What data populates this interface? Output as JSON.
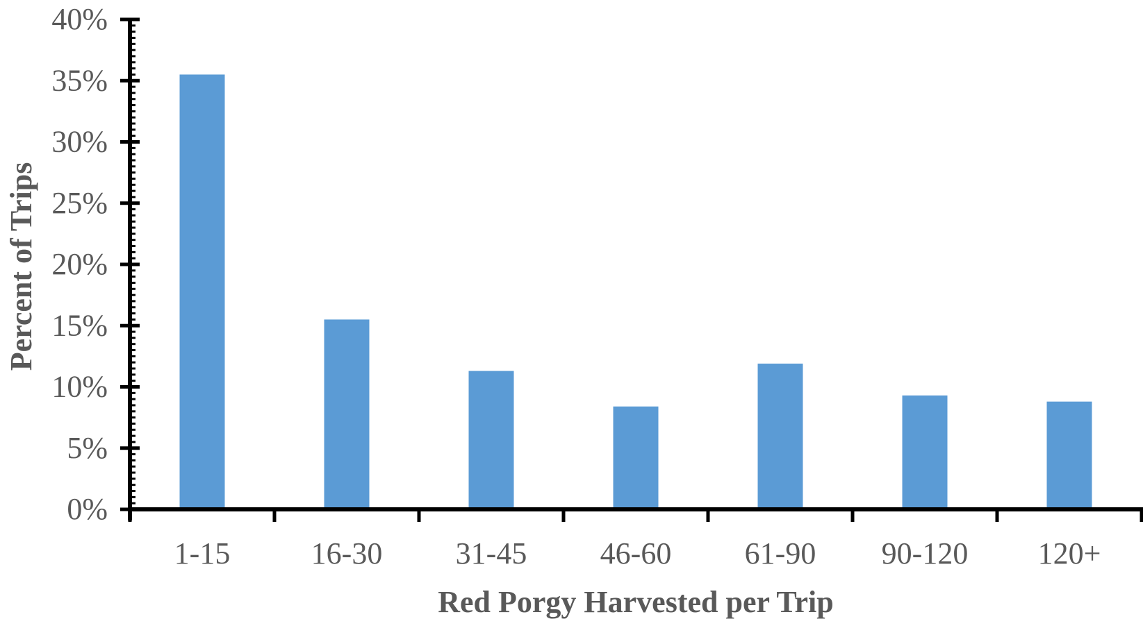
{
  "chart_data": {
    "type": "bar",
    "categories": [
      "1-15",
      "16-30",
      "31-45",
      "46-60",
      "61-90",
      "90-120",
      "120+"
    ],
    "values": [
      35.5,
      15.5,
      11.3,
      8.4,
      11.9,
      9.3,
      8.8
    ],
    "xlabel": "Red Porgy Harvested per Trip",
    "ylabel": "Percent of Trips",
    "ylim": [
      0,
      40
    ],
    "yticks": [
      "0%",
      "5%",
      "10%",
      "15%",
      "20%",
      "25%",
      "30%",
      "35%",
      "40%"
    ],
    "grid": false,
    "legend": "none",
    "colors": {
      "bar": "#5b9bd5",
      "axis": "#000000",
      "text": "#595959"
    }
  }
}
